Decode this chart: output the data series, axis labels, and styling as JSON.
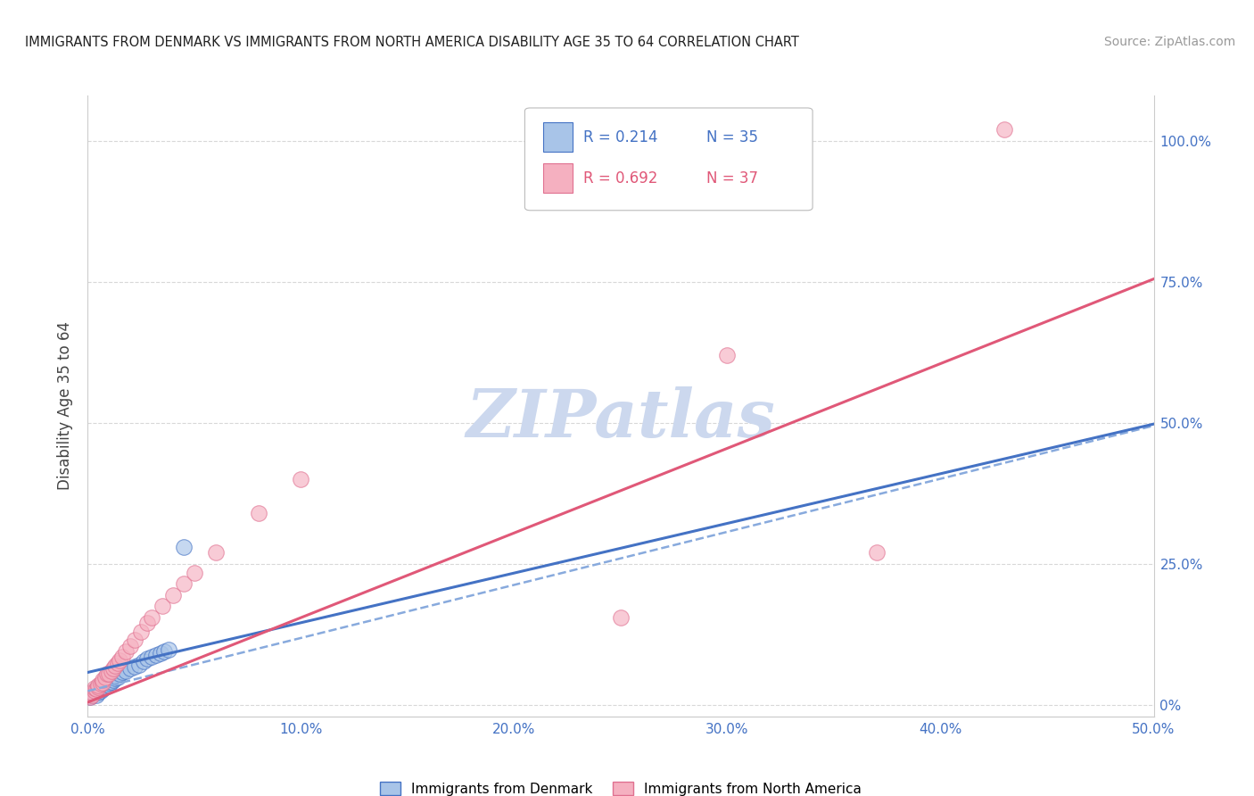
{
  "title": "IMMIGRANTS FROM DENMARK VS IMMIGRANTS FROM NORTH AMERICA DISABILITY AGE 35 TO 64 CORRELATION CHART",
  "source": "Source: ZipAtlas.com",
  "ylabel": "Disability Age 35 to 64",
  "xlim": [
    0.0,
    0.5
  ],
  "ylim": [
    -0.02,
    1.08
  ],
  "legend_r1": "0.214",
  "legend_n1": "35",
  "legend_r2": "0.692",
  "legend_n2": "37",
  "color_denmark": "#a8c4e8",
  "color_north_america": "#f5b0c0",
  "color_denmark_line": "#4472c4",
  "color_north_america_line": "#e05878",
  "color_denmark_dark": "#4472c4",
  "color_north_america_dark": "#e07090",
  "watermark": "ZIPatlas",
  "watermark_color": "#ccd8ee",
  "label_denmark": "Immigrants from Denmark",
  "label_north_america": "Immigrants from North America",
  "denmark_x": [
    0.001,
    0.002,
    0.002,
    0.003,
    0.003,
    0.004,
    0.004,
    0.005,
    0.005,
    0.006,
    0.006,
    0.007,
    0.007,
    0.008,
    0.009,
    0.01,
    0.01,
    0.011,
    0.012,
    0.013,
    0.014,
    0.015,
    0.016,
    0.018,
    0.02,
    0.022,
    0.024,
    0.026,
    0.028,
    0.03,
    0.032,
    0.034,
    0.036,
    0.038,
    0.045
  ],
  "denmark_y": [
    0.015,
    0.018,
    0.022,
    0.02,
    0.025,
    0.018,
    0.028,
    0.022,
    0.03,
    0.025,
    0.032,
    0.028,
    0.035,
    0.032,
    0.038,
    0.035,
    0.04,
    0.042,
    0.045,
    0.048,
    0.05,
    0.055,
    0.058,
    0.06,
    0.065,
    0.068,
    0.072,
    0.078,
    0.082,
    0.085,
    0.088,
    0.092,
    0.095,
    0.098,
    0.28
  ],
  "north_america_x": [
    0.001,
    0.002,
    0.002,
    0.003,
    0.003,
    0.004,
    0.005,
    0.005,
    0.006,
    0.007,
    0.007,
    0.008,
    0.009,
    0.01,
    0.011,
    0.012,
    0.013,
    0.014,
    0.015,
    0.016,
    0.018,
    0.02,
    0.022,
    0.025,
    0.028,
    0.03,
    0.035,
    0.04,
    0.045,
    0.05,
    0.06,
    0.08,
    0.1,
    0.25,
    0.3,
    0.37,
    0.43
  ],
  "north_america_y": [
    0.015,
    0.018,
    0.022,
    0.025,
    0.03,
    0.028,
    0.032,
    0.035,
    0.038,
    0.04,
    0.045,
    0.05,
    0.055,
    0.055,
    0.06,
    0.065,
    0.07,
    0.075,
    0.08,
    0.085,
    0.095,
    0.105,
    0.115,
    0.13,
    0.145,
    0.155,
    0.175,
    0.195,
    0.215,
    0.235,
    0.27,
    0.34,
    0.4,
    0.155,
    0.62,
    0.27,
    1.02
  ],
  "background_color": "#ffffff",
  "grid_color": "#d8d8d8",
  "ytick_vals": [
    0.0,
    0.25,
    0.5,
    0.75,
    1.0
  ],
  "ytick_right_labels": [
    "0%",
    "25.0%",
    "50.0%",
    "75.0%",
    "100.0%"
  ],
  "xtick_vals": [
    0.0,
    0.1,
    0.2,
    0.3,
    0.4,
    0.5
  ],
  "xtick_labels": [
    "0.0%",
    "10.0%",
    "20.0%",
    "30.0%",
    "40.0%",
    "50.0%"
  ]
}
